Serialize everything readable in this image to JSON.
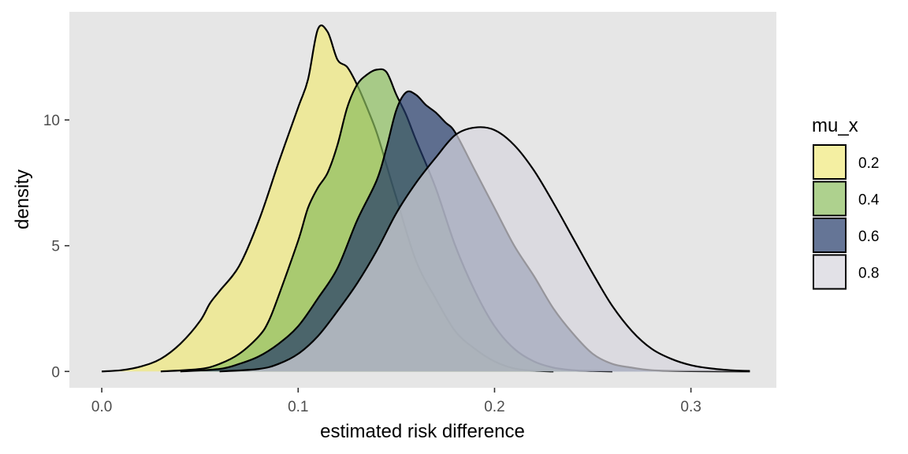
{
  "chart_data": {
    "type": "area",
    "subtype": "density",
    "xlabel": "estimated risk difference",
    "ylabel": "density",
    "xlim": [
      -0.0165,
      0.3435
    ],
    "ylim": [
      -0.65,
      14.3
    ],
    "x_ticks": [
      0.0,
      0.1,
      0.2,
      0.3
    ],
    "x_tick_labels": [
      "0.0",
      "0.1",
      "0.2",
      "0.3"
    ],
    "y_ticks": [
      0,
      5,
      10
    ],
    "y_tick_labels": [
      "0",
      "5",
      "10"
    ],
    "background": "#e6e6e6",
    "grid": false,
    "fill_opacity": 0.7,
    "legend": {
      "title": "mu_x",
      "position": "right"
    },
    "series": [
      {
        "name": "0.2",
        "color": "#f0e87a",
        "points": [
          [
            0.0,
            0.0
          ],
          [
            0.01,
            0.05
          ],
          [
            0.02,
            0.2
          ],
          [
            0.03,
            0.5
          ],
          [
            0.04,
            1.1
          ],
          [
            0.05,
            2.0
          ],
          [
            0.055,
            2.7
          ],
          [
            0.06,
            3.2
          ],
          [
            0.07,
            4.2
          ],
          [
            0.08,
            6.0
          ],
          [
            0.09,
            8.3
          ],
          [
            0.1,
            10.5
          ],
          [
            0.105,
            11.6
          ],
          [
            0.11,
            13.6
          ],
          [
            0.115,
            13.5
          ],
          [
            0.12,
            12.4
          ],
          [
            0.125,
            12.1
          ],
          [
            0.13,
            11.4
          ],
          [
            0.135,
            10.5
          ],
          [
            0.14,
            9.5
          ],
          [
            0.145,
            8.2
          ],
          [
            0.15,
            6.9
          ],
          [
            0.16,
            4.4
          ],
          [
            0.17,
            2.9
          ],
          [
            0.18,
            1.6
          ],
          [
            0.19,
            0.9
          ],
          [
            0.2,
            0.4
          ],
          [
            0.21,
            0.12
          ],
          [
            0.22,
            0.03
          ],
          [
            0.23,
            0.0
          ]
        ]
      },
      {
        "name": "0.4",
        "color": "#8bbd5e",
        "points": [
          [
            0.03,
            0.0
          ],
          [
            0.05,
            0.1
          ],
          [
            0.06,
            0.3
          ],
          [
            0.07,
            0.7
          ],
          [
            0.08,
            1.4
          ],
          [
            0.085,
            2.0
          ],
          [
            0.09,
            3.0
          ],
          [
            0.1,
            5.2
          ],
          [
            0.105,
            6.5
          ],
          [
            0.11,
            7.3
          ],
          [
            0.115,
            7.9
          ],
          [
            0.12,
            9.0
          ],
          [
            0.125,
            10.5
          ],
          [
            0.13,
            11.4
          ],
          [
            0.135,
            11.8
          ],
          [
            0.14,
            12.0
          ],
          [
            0.145,
            11.9
          ],
          [
            0.15,
            11.0
          ],
          [
            0.155,
            10.2
          ],
          [
            0.16,
            9.2
          ],
          [
            0.17,
            7.3
          ],
          [
            0.18,
            5.0
          ],
          [
            0.19,
            3.2
          ],
          [
            0.2,
            1.8
          ],
          [
            0.21,
            0.9
          ],
          [
            0.22,
            0.4
          ],
          [
            0.23,
            0.15
          ],
          [
            0.24,
            0.05
          ],
          [
            0.25,
            0.02
          ],
          [
            0.26,
            0.0
          ]
        ]
      },
      {
        "name": "0.6",
        "color": "#233a6a",
        "points": [
          [
            0.04,
            0.0
          ],
          [
            0.06,
            0.1
          ],
          [
            0.07,
            0.3
          ],
          [
            0.08,
            0.6
          ],
          [
            0.09,
            1.1
          ],
          [
            0.1,
            1.8
          ],
          [
            0.11,
            2.9
          ],
          [
            0.12,
            4.1
          ],
          [
            0.13,
            6.0
          ],
          [
            0.14,
            7.6
          ],
          [
            0.145,
            8.9
          ],
          [
            0.15,
            10.4
          ],
          [
            0.155,
            11.1
          ],
          [
            0.16,
            11.0
          ],
          [
            0.165,
            10.6
          ],
          [
            0.17,
            10.3
          ],
          [
            0.175,
            9.9
          ],
          [
            0.18,
            9.5
          ],
          [
            0.19,
            8.0
          ],
          [
            0.2,
            6.5
          ],
          [
            0.21,
            5.0
          ],
          [
            0.22,
            3.8
          ],
          [
            0.23,
            2.5
          ],
          [
            0.24,
            1.5
          ],
          [
            0.25,
            0.7
          ],
          [
            0.26,
            0.3
          ],
          [
            0.27,
            0.15
          ],
          [
            0.28,
            0.05
          ],
          [
            0.3,
            0.01
          ],
          [
            0.33,
            0.0
          ]
        ]
      },
      {
        "name": "0.8",
        "color": "#d6d4dd",
        "points": [
          [
            0.06,
            0.0
          ],
          [
            0.08,
            0.1
          ],
          [
            0.09,
            0.3
          ],
          [
            0.1,
            0.7
          ],
          [
            0.11,
            1.4
          ],
          [
            0.12,
            2.4
          ],
          [
            0.13,
            3.5
          ],
          [
            0.14,
            4.8
          ],
          [
            0.15,
            6.3
          ],
          [
            0.16,
            7.5
          ],
          [
            0.17,
            8.5
          ],
          [
            0.18,
            9.4
          ],
          [
            0.19,
            9.7
          ],
          [
            0.2,
            9.6
          ],
          [
            0.21,
            9.0
          ],
          [
            0.22,
            8.0
          ],
          [
            0.23,
            6.7
          ],
          [
            0.24,
            5.3
          ],
          [
            0.25,
            3.9
          ],
          [
            0.26,
            2.6
          ],
          [
            0.27,
            1.6
          ],
          [
            0.28,
            0.9
          ],
          [
            0.29,
            0.5
          ],
          [
            0.3,
            0.25
          ],
          [
            0.31,
            0.12
          ],
          [
            0.32,
            0.05
          ],
          [
            0.33,
            0.02
          ]
        ]
      }
    ]
  }
}
